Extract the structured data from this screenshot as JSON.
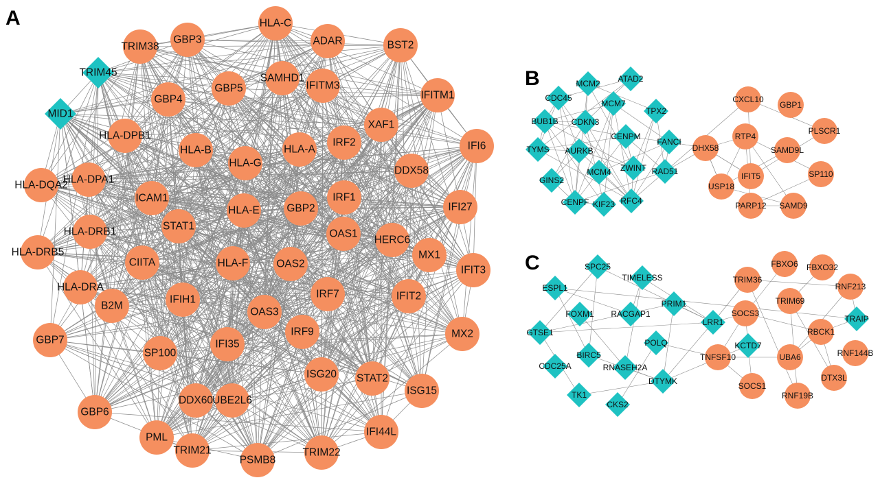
{
  "colors": {
    "circle_node": "#F58F5F",
    "diamond_node": "#1EC2C2",
    "edge": "#8c8c8c",
    "label": "#111111"
  },
  "panels": [
    {
      "id": "A",
      "label": "A",
      "nodes": [
        {
          "name": "HLA-C",
          "shape": "circle"
        },
        {
          "name": "ADAR",
          "shape": "circle"
        },
        {
          "name": "BST2",
          "shape": "circle"
        },
        {
          "name": "GBP3",
          "shape": "circle"
        },
        {
          "name": "TRIM38",
          "shape": "circle"
        },
        {
          "name": "TRIM45",
          "shape": "diamond"
        },
        {
          "name": "SAMHD1",
          "shape": "circle"
        },
        {
          "name": "IFITM3",
          "shape": "circle"
        },
        {
          "name": "IFITM1",
          "shape": "circle"
        },
        {
          "name": "GBP5",
          "shape": "circle"
        },
        {
          "name": "GBP4",
          "shape": "circle"
        },
        {
          "name": "MID1",
          "shape": "diamond"
        },
        {
          "name": "XAF1",
          "shape": "circle"
        },
        {
          "name": "IRF2",
          "shape": "circle"
        },
        {
          "name": "HLA-DPB1",
          "shape": "circle"
        },
        {
          "name": "IFI6",
          "shape": "circle"
        },
        {
          "name": "HLA-B",
          "shape": "circle"
        },
        {
          "name": "HLA-G",
          "shape": "circle"
        },
        {
          "name": "HLA-A",
          "shape": "circle"
        },
        {
          "name": "DDX58",
          "shape": "circle"
        },
        {
          "name": "HLA-DQA2",
          "shape": "circle"
        },
        {
          "name": "HLA-DPA1",
          "shape": "circle"
        },
        {
          "name": "ICAM1",
          "shape": "circle"
        },
        {
          "name": "IRF1",
          "shape": "circle"
        },
        {
          "name": "GBP2",
          "shape": "circle"
        },
        {
          "name": "HLA-E",
          "shape": "circle"
        },
        {
          "name": "IFI27",
          "shape": "circle"
        },
        {
          "name": "STAT1",
          "shape": "circle"
        },
        {
          "name": "HLA-DRB1",
          "shape": "circle"
        },
        {
          "name": "HLA-DRB5",
          "shape": "circle"
        },
        {
          "name": "OAS1",
          "shape": "circle"
        },
        {
          "name": "HERC6",
          "shape": "circle"
        },
        {
          "name": "MX1",
          "shape": "circle"
        },
        {
          "name": "CIITA",
          "shape": "circle"
        },
        {
          "name": "HLA-F",
          "shape": "circle"
        },
        {
          "name": "OAS2",
          "shape": "circle"
        },
        {
          "name": "IFIT3",
          "shape": "circle"
        },
        {
          "name": "HLA-DRA",
          "shape": "circle"
        },
        {
          "name": "IRF7",
          "shape": "circle"
        },
        {
          "name": "IFIT2",
          "shape": "circle"
        },
        {
          "name": "IFIH1",
          "shape": "circle"
        },
        {
          "name": "OAS3",
          "shape": "circle"
        },
        {
          "name": "B2M",
          "shape": "circle"
        },
        {
          "name": "MX2",
          "shape": "circle"
        },
        {
          "name": "IRF9",
          "shape": "circle"
        },
        {
          "name": "GBP7",
          "shape": "circle"
        },
        {
          "name": "IFI35",
          "shape": "circle"
        },
        {
          "name": "SP100",
          "shape": "circle"
        },
        {
          "name": "ISG20",
          "shape": "circle"
        },
        {
          "name": "STAT2",
          "shape": "circle"
        },
        {
          "name": "ISG15",
          "shape": "circle"
        },
        {
          "name": "UBE2L6",
          "shape": "circle"
        },
        {
          "name": "DDX60",
          "shape": "circle"
        },
        {
          "name": "GBP6",
          "shape": "circle"
        },
        {
          "name": "PML",
          "shape": "circle"
        },
        {
          "name": "IFI44L",
          "shape": "circle"
        },
        {
          "name": "TRIM21",
          "shape": "circle"
        },
        {
          "name": "TRIM22",
          "shape": "circle"
        },
        {
          "name": "PSMB8",
          "shape": "circle"
        }
      ]
    },
    {
      "id": "B",
      "label": "B",
      "nodes": [
        {
          "name": "MCM2",
          "shape": "diamond"
        },
        {
          "name": "ATAD2",
          "shape": "diamond"
        },
        {
          "name": "CDC45",
          "shape": "diamond"
        },
        {
          "name": "MCM7",
          "shape": "diamond"
        },
        {
          "name": "TPX2",
          "shape": "diamond"
        },
        {
          "name": "BUB1B",
          "shape": "diamond"
        },
        {
          "name": "CDKN3",
          "shape": "diamond"
        },
        {
          "name": "CENPM",
          "shape": "diamond"
        },
        {
          "name": "FANCI",
          "shape": "diamond"
        },
        {
          "name": "TYMS",
          "shape": "diamond"
        },
        {
          "name": "AURKB",
          "shape": "diamond"
        },
        {
          "name": "ZWINT",
          "shape": "diamond"
        },
        {
          "name": "RAD51",
          "shape": "diamond"
        },
        {
          "name": "MCM4",
          "shape": "diamond"
        },
        {
          "name": "GINS2",
          "shape": "diamond"
        },
        {
          "name": "CENPF",
          "shape": "diamond"
        },
        {
          "name": "KIF23",
          "shape": "diamond"
        },
        {
          "name": "RFC4",
          "shape": "diamond"
        },
        {
          "name": "DHX58",
          "shape": "circle"
        },
        {
          "name": "CXCL10",
          "shape": "circle"
        },
        {
          "name": "GBP1",
          "shape": "circle"
        },
        {
          "name": "RTP4",
          "shape": "circle"
        },
        {
          "name": "PLSCR1",
          "shape": "circle"
        },
        {
          "name": "SAMD9L",
          "shape": "circle"
        },
        {
          "name": "IFIT5",
          "shape": "circle"
        },
        {
          "name": "SP110",
          "shape": "circle"
        },
        {
          "name": "USP18",
          "shape": "circle"
        },
        {
          "name": "PARP12",
          "shape": "circle"
        },
        {
          "name": "SAMD9",
          "shape": "circle"
        }
      ]
    },
    {
      "id": "C",
      "label": "C",
      "nodes": [
        {
          "name": "SPC25",
          "shape": "diamond"
        },
        {
          "name": "TIMELESS",
          "shape": "diamond"
        },
        {
          "name": "ESPL1",
          "shape": "diamond"
        },
        {
          "name": "PRIM1",
          "shape": "diamond"
        },
        {
          "name": "FOXM1",
          "shape": "diamond"
        },
        {
          "name": "RACGAP1",
          "shape": "diamond"
        },
        {
          "name": "LRR1",
          "shape": "diamond"
        },
        {
          "name": "GTSE1",
          "shape": "diamond"
        },
        {
          "name": "POLQ",
          "shape": "diamond"
        },
        {
          "name": "KCTD7",
          "shape": "diamond"
        },
        {
          "name": "BIRC5",
          "shape": "diamond"
        },
        {
          "name": "CDC25A",
          "shape": "diamond"
        },
        {
          "name": "RNASEH2A",
          "shape": "diamond"
        },
        {
          "name": "DTYMK",
          "shape": "diamond"
        },
        {
          "name": "TK1",
          "shape": "diamond"
        },
        {
          "name": "CKS2",
          "shape": "diamond"
        },
        {
          "name": "TRAIP",
          "shape": "diamond"
        },
        {
          "name": "FBXO6",
          "shape": "circle"
        },
        {
          "name": "FBXO32",
          "shape": "circle"
        },
        {
          "name": "TRIM36",
          "shape": "circle"
        },
        {
          "name": "RNF213",
          "shape": "circle"
        },
        {
          "name": "TRIM69",
          "shape": "circle"
        },
        {
          "name": "SOCS3",
          "shape": "circle"
        },
        {
          "name": "RBCK1",
          "shape": "circle"
        },
        {
          "name": "TNFSF10",
          "shape": "circle"
        },
        {
          "name": "UBA6",
          "shape": "circle"
        },
        {
          "name": "RNF144B",
          "shape": "circle"
        },
        {
          "name": "DTX3L",
          "shape": "circle"
        },
        {
          "name": "SOCS1",
          "shape": "circle"
        },
        {
          "name": "RNF19B",
          "shape": "circle"
        }
      ]
    }
  ]
}
